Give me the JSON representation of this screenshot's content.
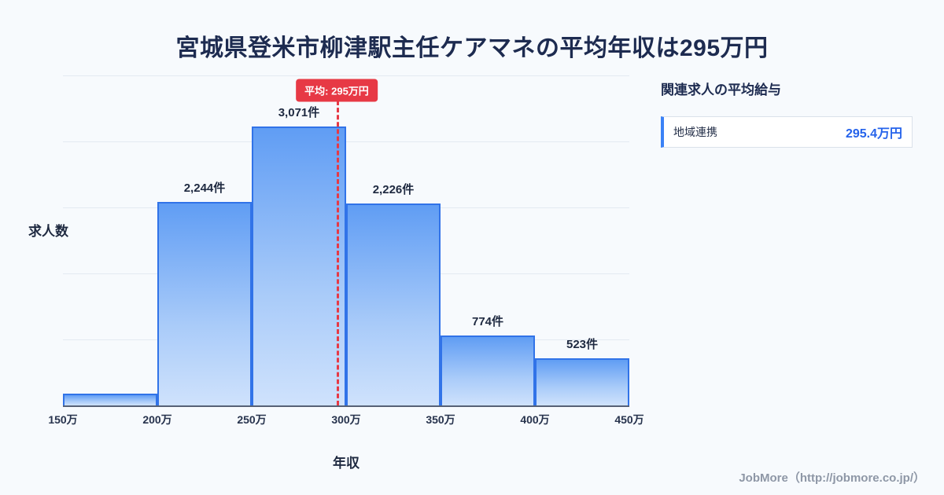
{
  "title": "宮城県登米市柳津駅主任ケアマネの平均年収は295万円",
  "chart_data": {
    "type": "bar",
    "xlabel": "年収",
    "ylabel": "求人数",
    "x_tick_labels": [
      "150万",
      "200万",
      "250万",
      "300万",
      "350万",
      "400万",
      "450万"
    ],
    "x_range_man_yen": [
      150,
      450
    ],
    "bin_width_man_yen": 50,
    "values": [
      130,
      2244,
      3071,
      2226,
      774,
      523
    ],
    "bar_labels": [
      "",
      "2,244件",
      "3,071件",
      "2,226件",
      "774件",
      "523件"
    ],
    "ylim": [
      0,
      3400
    ],
    "grid": true,
    "legend": false,
    "average_line": {
      "x_man_yen": 295,
      "label": "平均: 295万円"
    }
  },
  "side_panel": {
    "title": "関連求人の平均給与",
    "items": [
      {
        "label": "地域連携",
        "value": "295.4万円"
      }
    ]
  },
  "footer": {
    "credit": "JobMore（http://jobmore.co.jp/）"
  },
  "colors": {
    "background": "#f7fafd",
    "title_navy": "#1d2b50",
    "bar_fill_top": "#609df4",
    "bar_fill_bottom": "#cfe2fc",
    "bar_border": "#3173e8",
    "average_red": "#e73945",
    "accent_blue": "#3b82f6",
    "value_blue": "#2563eb",
    "footer_gray": "#8e97a6"
  }
}
